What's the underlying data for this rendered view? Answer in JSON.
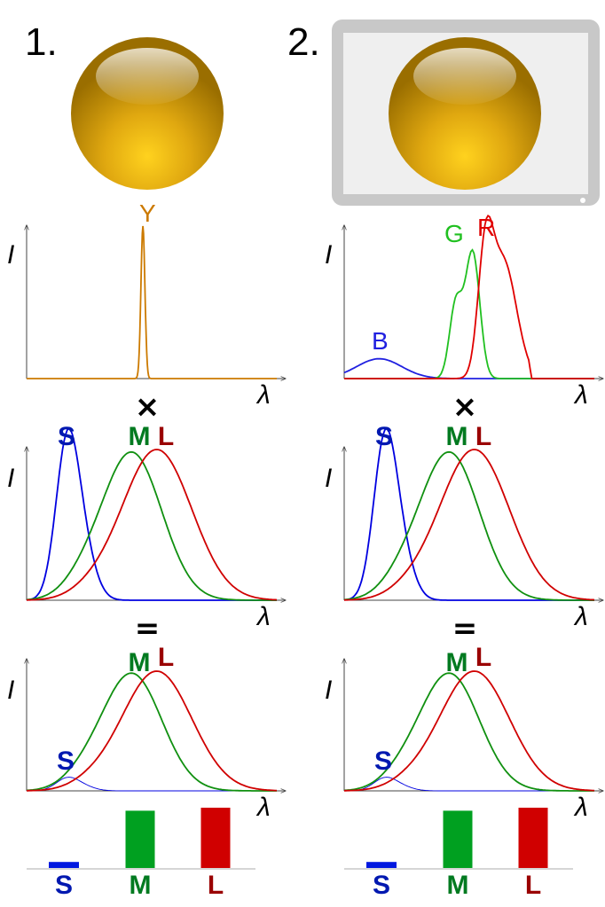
{
  "panels": [
    {
      "number": "1.",
      "source": "monochromatic-yellow",
      "emission_peaks": [
        "Y"
      ],
      "emission_colors": {
        "Y": "#CC7A00"
      }
    },
    {
      "number": "2.",
      "source": "rgb-display",
      "emission_peaks": [
        "B",
        "G",
        "R"
      ],
      "emission_colors": {
        "B": "#2020E0",
        "G": "#20C020",
        "R": "#E00000"
      }
    }
  ],
  "axes": {
    "x_label": "λ",
    "y_label": "I"
  },
  "operators": {
    "multiply": "×",
    "equals": "="
  },
  "cones": [
    {
      "key": "S",
      "label": "S",
      "color": "#0018B0",
      "line_color": "#0000E0"
    },
    {
      "key": "M",
      "label": "M",
      "color": "#007A20",
      "line_color": "#109010"
    },
    {
      "key": "L",
      "label": "L",
      "color": "#9A0000",
      "line_color": "#D00000"
    }
  ],
  "cone_response_levels": {
    "S": 0.1,
    "M": 0.95,
    "L": 1.0
  },
  "bar_colors": {
    "S": "#0018E0",
    "M": "#00A020",
    "L": "#D00000"
  },
  "sphere_colors": {
    "light": "#FFD21E",
    "mid": "#E0A810",
    "dark": "#9A6E00"
  },
  "monitor_colors": {
    "bezel": "#C8C8C8",
    "screen": "#EFEFEF"
  }
}
